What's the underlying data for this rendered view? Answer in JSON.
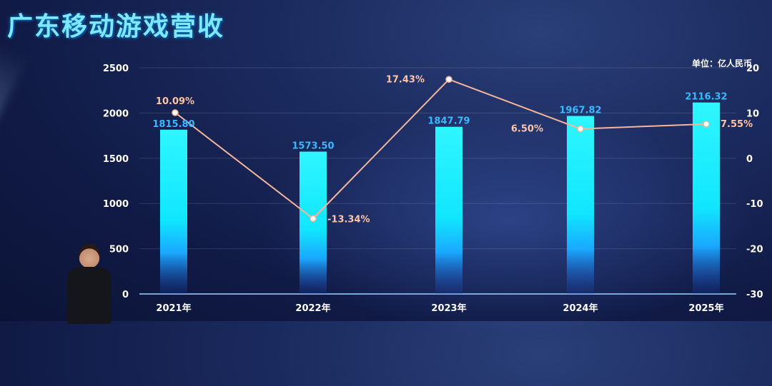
{
  "header": {
    "title": "广东移动游戏营收"
  },
  "unit_label": "单位：亿人民币",
  "chart_data": {
    "type": "bar",
    "categories": [
      "2021年",
      "2022年",
      "2023年",
      "2024年",
      "2025年"
    ],
    "series": [
      {
        "values": [
          1815.8,
          1573.5,
          1847.79,
          1967.82,
          2116.32
        ],
        "labels": [
          "1815.80",
          "1573.50",
          "1847.79",
          "1967.82",
          "2116.32"
        ],
        "axis": "left",
        "kind": "bar",
        "color": "#22f0ff"
      },
      {
        "values": [
          10.09,
          -13.34,
          17.43,
          6.5,
          7.55
        ],
        "labels": [
          "10.09%",
          "-13.34%",
          "17.43%",
          "6.50%",
          "7.55%"
        ],
        "axis": "right",
        "kind": "line",
        "color": "#f6b59b"
      }
    ],
    "y_left": {
      "min": 0,
      "max": 2500,
      "ticks": [
        0,
        500,
        1000,
        1500,
        2000,
        2500
      ]
    },
    "y_right": {
      "min": -30,
      "max": 20,
      "ticks": [
        -30,
        -20,
        -10,
        0,
        10,
        20
      ]
    },
    "grid": true
  }
}
